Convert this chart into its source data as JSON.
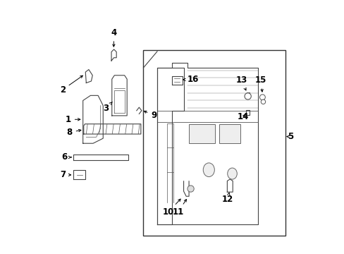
{
  "background_color": "#ffffff",
  "fig_width": 4.89,
  "fig_height": 3.6,
  "dpi": 100,
  "label_fontsize": 8.5,
  "arrow_color": "#000000",
  "line_color": "#555555",
  "text_color": "#000000"
}
